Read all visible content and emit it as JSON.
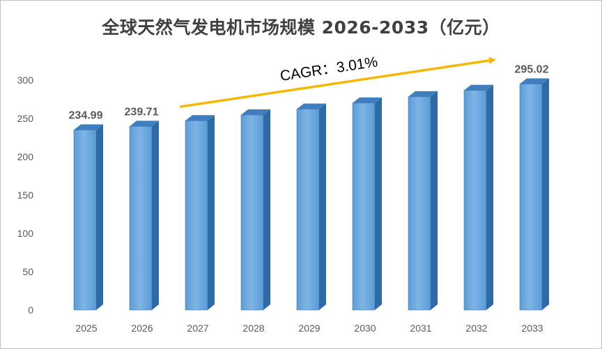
{
  "chart_data": {
    "type": "bar",
    "title": "全球天然气发电机市场规模 2026-2033（亿元）",
    "categories": [
      "2025",
      "2026",
      "2027",
      "2028",
      "2029",
      "2030",
      "2031",
      "2032",
      "2033"
    ],
    "values": [
      234.99,
      239.71,
      247.0,
      254.5,
      262.2,
      270.1,
      278.3,
      286.6,
      295.02
    ],
    "data_labels": [
      {
        "index": 0,
        "text": "234.99"
      },
      {
        "index": 1,
        "text": "239.71"
      },
      {
        "index": 8,
        "text": "295.02"
      }
    ],
    "yticks": [
      "0",
      "50",
      "100",
      "150",
      "200",
      "250",
      "300"
    ],
    "ylim": [
      0,
      300
    ],
    "xlabel": "",
    "ylabel": "",
    "grid": false,
    "legend": "none",
    "annotation": {
      "text": "CAGR：3.01%",
      "arrow_color": "#F5B800"
    },
    "colors": {
      "bar_front": "#5B9BD5",
      "bar_highlight": "#7FB4E6",
      "bar_side": "#2E6AA3",
      "bar_top": "#3F7FBF",
      "text": "#595959"
    }
  }
}
